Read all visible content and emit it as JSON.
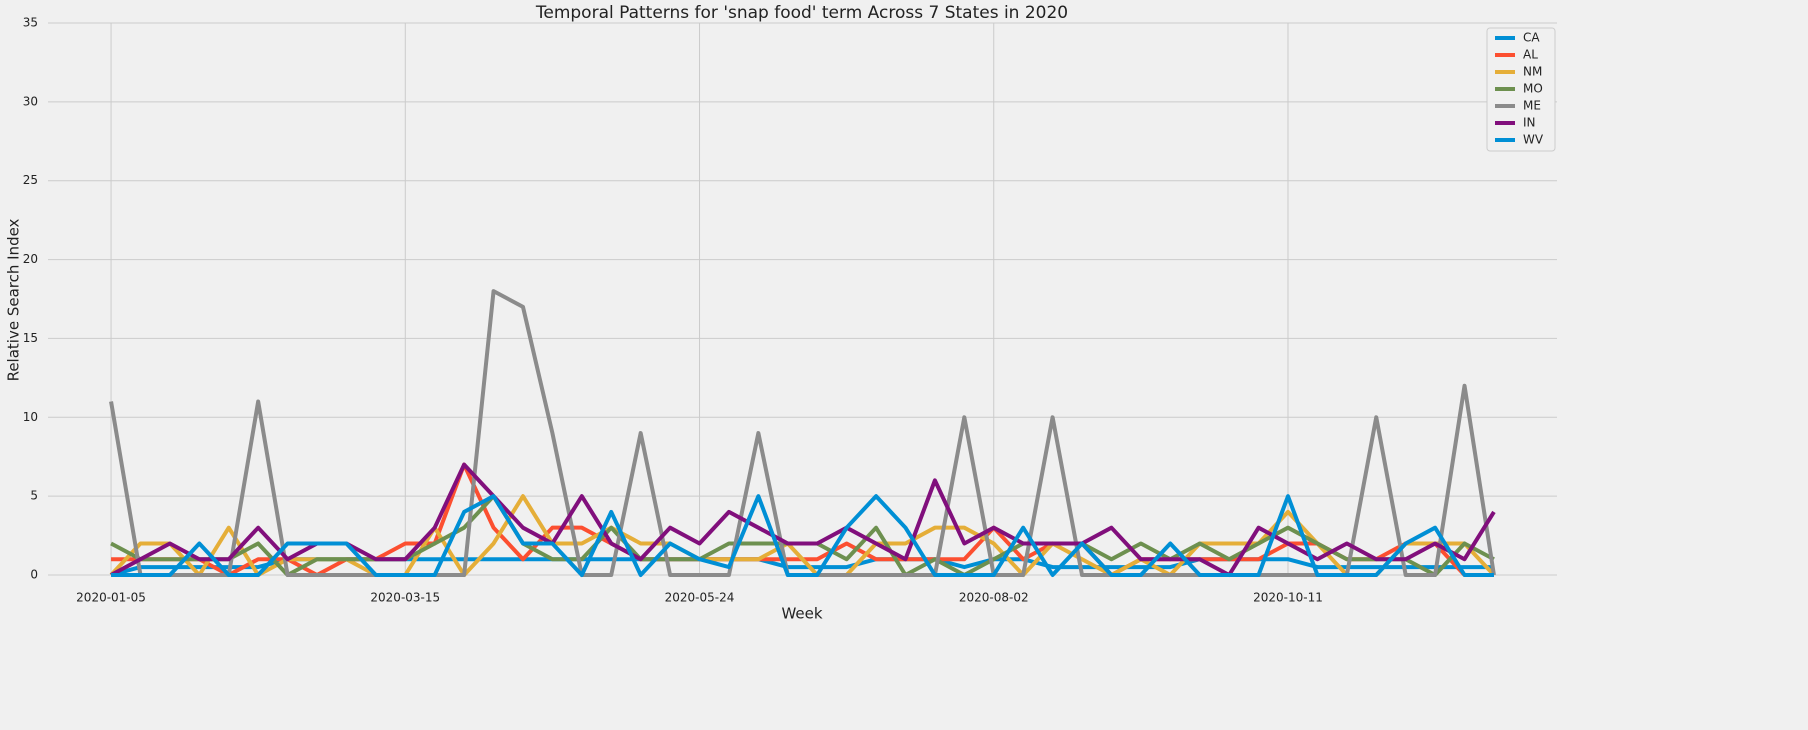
{
  "chart_data": {
    "type": "line",
    "title": "Temporal Patterns for 'snap food' term Across 7 States in 2020",
    "x_label": "Week",
    "y_label": "Relative Search Index",
    "x": [
      "2020-01-05",
      "2020-01-12",
      "2020-01-19",
      "2020-01-26",
      "2020-02-02",
      "2020-02-09",
      "2020-02-16",
      "2020-02-23",
      "2020-03-01",
      "2020-03-08",
      "2020-03-15",
      "2020-03-22",
      "2020-03-29",
      "2020-04-05",
      "2020-04-12",
      "2020-04-19",
      "2020-04-26",
      "2020-05-03",
      "2020-05-10",
      "2020-05-17",
      "2020-05-24",
      "2020-05-31",
      "2020-06-07",
      "2020-06-14",
      "2020-06-21",
      "2020-06-28",
      "2020-07-05",
      "2020-07-12",
      "2020-07-19",
      "2020-07-26",
      "2020-08-02",
      "2020-08-09",
      "2020-08-16",
      "2020-08-23",
      "2020-08-30",
      "2020-09-06",
      "2020-09-13",
      "2020-09-20",
      "2020-09-27",
      "2020-10-04",
      "2020-10-11",
      "2020-10-18",
      "2020-10-25",
      "2020-11-01",
      "2020-11-08",
      "2020-11-15",
      "2020-11-22",
      "2020-11-29"
    ],
    "series": [
      {
        "name": "CA",
        "color": "#008fd5",
        "values": [
          0,
          0.5,
          0.5,
          0.5,
          0.5,
          0.5,
          1,
          1,
          1,
          1,
          1,
          1,
          1,
          1,
          1,
          1,
          1,
          1,
          1,
          1,
          1,
          1,
          1,
          0.5,
          0.5,
          0.5,
          1,
          1,
          1,
          0.5,
          1,
          1,
          0.5,
          0.5,
          0.5,
          0.5,
          0.5,
          1,
          1,
          1,
          1,
          0.5,
          0.5,
          0.5,
          0.5,
          0.5,
          0.5,
          0.5
        ]
      },
      {
        "name": "AL",
        "color": "#fc4f30",
        "values": [
          1,
          1,
          1,
          1,
          0,
          1,
          1,
          0,
          1,
          1,
          2,
          2,
          7,
          3,
          1,
          3,
          3,
          2,
          1,
          1,
          1,
          1,
          1,
          1,
          1,
          2,
          1,
          1,
          1,
          1,
          3,
          1,
          2,
          2,
          0,
          1,
          1,
          1,
          1,
          1,
          2,
          2,
          1,
          1,
          2,
          2,
          0,
          0
        ]
      },
      {
        "name": "NM",
        "color": "#e5ae38",
        "values": [
          0,
          2,
          2,
          0,
          3,
          0,
          1,
          1,
          1,
          0,
          0,
          3,
          0,
          2,
          5,
          2,
          2,
          3,
          2,
          2,
          1,
          1,
          1,
          2,
          0,
          0,
          2,
          2,
          3,
          3,
          2,
          0,
          2,
          1,
          0,
          1,
          0,
          2,
          2,
          2,
          4,
          2,
          0,
          0,
          2,
          2,
          2,
          0
        ]
      },
      {
        "name": "MO",
        "color": "#6d904f",
        "values": [
          2,
          1,
          1,
          1,
          1,
          2,
          0,
          1,
          1,
          1,
          1,
          2,
          3,
          5,
          2,
          1,
          1,
          3,
          1,
          1,
          1,
          2,
          2,
          2,
          2,
          1,
          3,
          0,
          1,
          0,
          1,
          2,
          2,
          2,
          1,
          2,
          1,
          2,
          1,
          2,
          3,
          2,
          1,
          1,
          1,
          0,
          2,
          1
        ]
      },
      {
        "name": "ME",
        "color": "#8b8b8b",
        "values": [
          11,
          0,
          0,
          0,
          0,
          11,
          0,
          0,
          0,
          0,
          0,
          0,
          0,
          18,
          17,
          9,
          0,
          0,
          9,
          0,
          0,
          0,
          9,
          0,
          0,
          0,
          0,
          0,
          0,
          10,
          0,
          0,
          10,
          0,
          0,
          0,
          0,
          0,
          0,
          0,
          0,
          0,
          0,
          10,
          0,
          0,
          12,
          0
        ]
      },
      {
        "name": "IN",
        "color": "#810f7c",
        "values": [
          0,
          1,
          2,
          1,
          1,
          3,
          1,
          2,
          2,
          1,
          1,
          3,
          7,
          5,
          3,
          2,
          5,
          2,
          1,
          3,
          2,
          4,
          3,
          2,
          2,
          3,
          2,
          1,
          6,
          2,
          3,
          2,
          2,
          2,
          3,
          1,
          1,
          1,
          0,
          3,
          2,
          1,
          2,
          1,
          1,
          2,
          1,
          4
        ]
      },
      {
        "name": "WV",
        "color": "#008fd5",
        "values": [
          0,
          0,
          0,
          2,
          0,
          0,
          2,
          2,
          2,
          0,
          0,
          0,
          4,
          5,
          2,
          2,
          0,
          4,
          0,
          2,
          1,
          0.5,
          5,
          0,
          0,
          3,
          5,
          3,
          0,
          0,
          0,
          3,
          0,
          2,
          0,
          0,
          2,
          0,
          0,
          0,
          5,
          0,
          0,
          0,
          2,
          3,
          0,
          0
        ]
      }
    ],
    "xlim": [
      "2019-12-21",
      "2020-12-14"
    ],
    "xticks": [
      "2020-01-05",
      "2020-03-15",
      "2020-05-24",
      "2020-08-02",
      "2020-10-11"
    ],
    "ylim": [
      0,
      35
    ],
    "yticks": [
      0,
      5,
      10,
      15,
      20,
      25,
      30,
      35
    ],
    "grid": true,
    "legend": "upper right"
  }
}
